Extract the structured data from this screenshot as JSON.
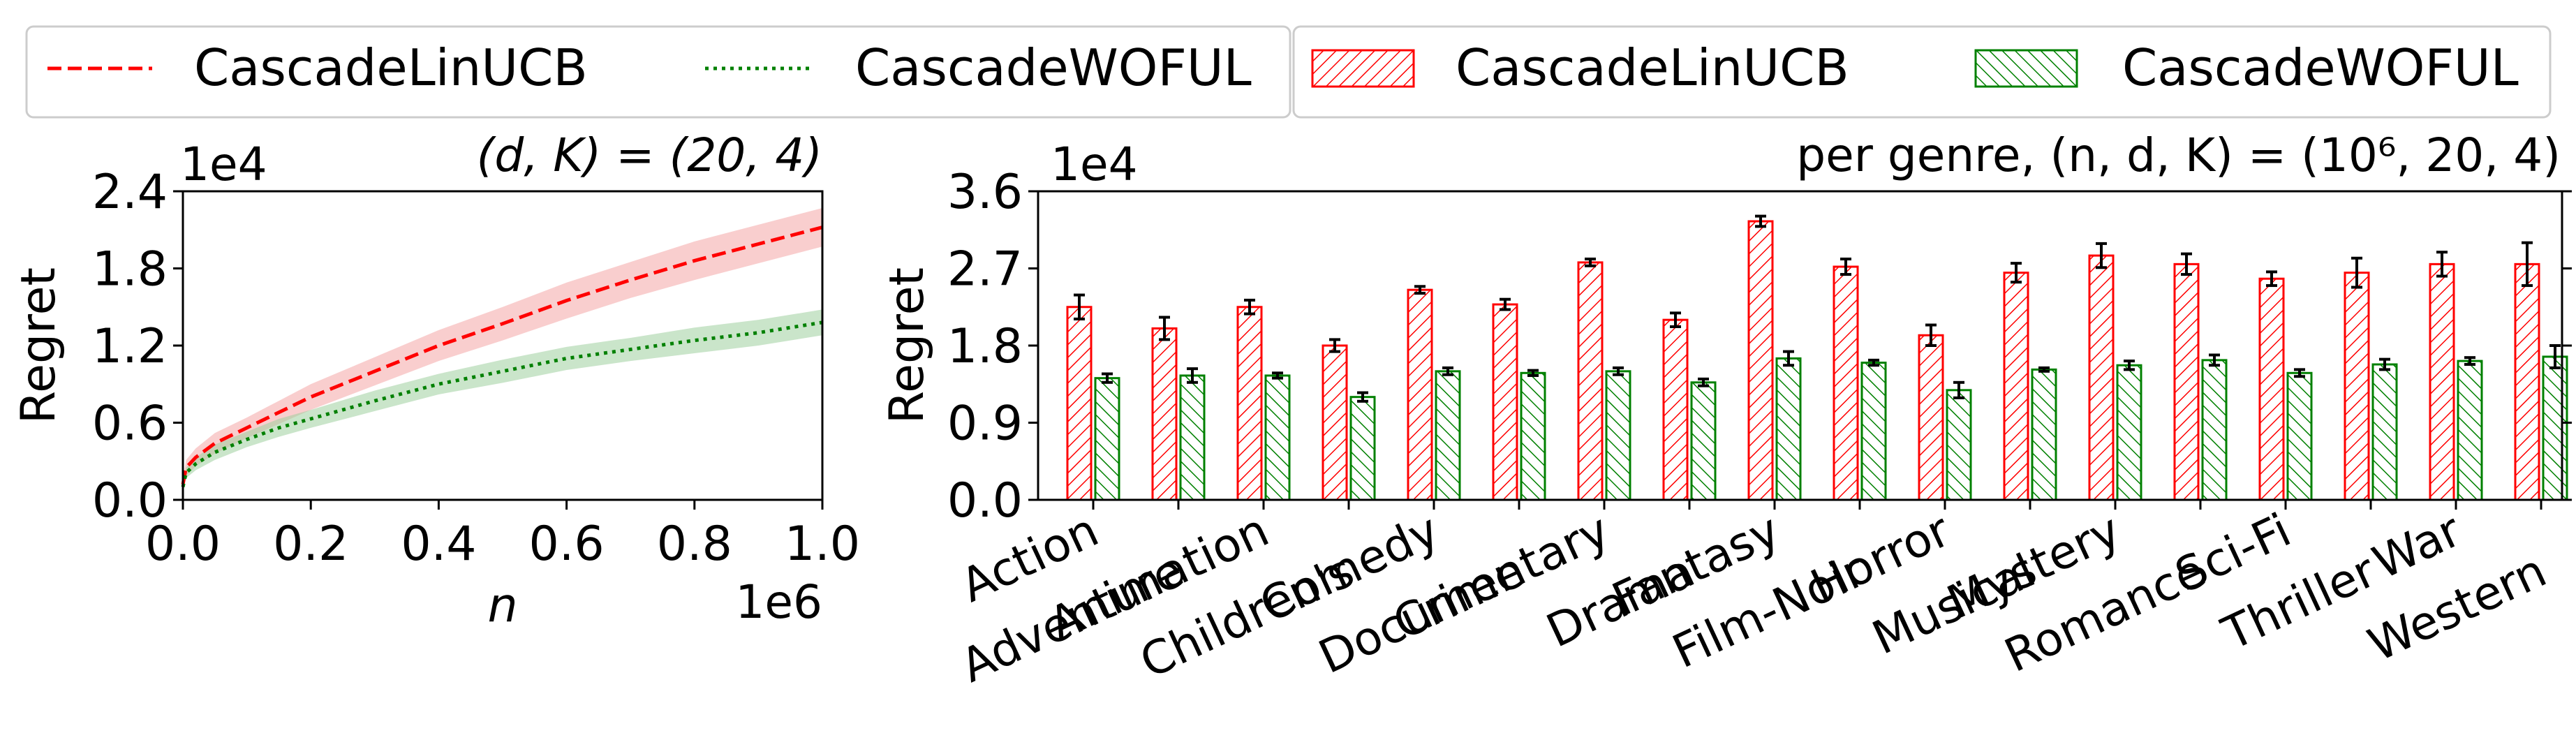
{
  "colors": {
    "linucb": "#ff0000",
    "woful": "#008000",
    "linucb_band": "#f4a6a6",
    "woful_band": "#9fd09f"
  },
  "legend_left": {
    "items": [
      "CascadeLinUCB",
      "CascadeWOFUL"
    ]
  },
  "legend_right": {
    "items": [
      "CascadeLinUCB",
      "CascadeWOFUL"
    ]
  },
  "chart_data": [
    {
      "type": "line",
      "title": "(d, K) = (20, 4)",
      "xlabel": "n",
      "ylabel": "Regret",
      "x_offset_text": "1e6",
      "y_offset_text": "1e4",
      "xlim": [
        0,
        1.0
      ],
      "ylim": [
        0,
        2.4
      ],
      "xticks": [
        "0.0",
        "0.2",
        "0.4",
        "0.6",
        "0.8",
        "1.0"
      ],
      "yticks": [
        "0.0",
        "0.6",
        "1.2",
        "1.8",
        "2.4"
      ],
      "x": [
        0,
        0.005,
        0.02,
        0.05,
        0.1,
        0.15,
        0.2,
        0.3,
        0.4,
        0.5,
        0.6,
        0.7,
        0.8,
        0.9,
        1.0
      ],
      "series": [
        {
          "name": "CascadeLinUCB",
          "style": "dashed",
          "values": [
            0.12,
            0.25,
            0.33,
            0.44,
            0.56,
            0.68,
            0.8,
            1.0,
            1.2,
            1.37,
            1.55,
            1.71,
            1.86,
            1.99,
            2.12
          ],
          "band": [
            0.04,
            0.06,
            0.07,
            0.08,
            0.08,
            0.09,
            0.1,
            0.11,
            0.12,
            0.13,
            0.14,
            0.14,
            0.15,
            0.15,
            0.15
          ]
        },
        {
          "name": "CascadeWOFUL",
          "style": "dotted",
          "values": [
            0.1,
            0.21,
            0.28,
            0.37,
            0.47,
            0.56,
            0.63,
            0.77,
            0.9,
            1.0,
            1.1,
            1.17,
            1.24,
            1.3,
            1.38
          ],
          "band": [
            0.03,
            0.04,
            0.05,
            0.06,
            0.06,
            0.07,
            0.07,
            0.08,
            0.08,
            0.09,
            0.09,
            0.09,
            0.1,
            0.1,
            0.1
          ]
        }
      ]
    },
    {
      "type": "bar",
      "title": "per genre, (n, d, K) = (10⁶, 20, 4)",
      "xlabel": "",
      "ylabel": "Regret",
      "y_offset_text": "1e4",
      "ylim": [
        0,
        3.6
      ],
      "yticks": [
        "0.0",
        "0.9",
        "1.8",
        "2.7",
        "3.6"
      ],
      "categories": [
        "Action",
        "Adventure",
        "Animation",
        "Children's",
        "Comedy",
        "Crime",
        "Documentary",
        "Drama",
        "Fantasy",
        "Film-Noir",
        "Horror",
        "Musical",
        "Mystery",
        "Romance",
        "Sci-Fi",
        "Thriller",
        "War",
        "Western"
      ],
      "series": [
        {
          "name": "CascadeLinUCB",
          "values": [
            2.25,
            2.0,
            2.25,
            1.8,
            2.45,
            2.28,
            2.77,
            2.1,
            3.25,
            2.72,
            1.92,
            2.65,
            2.85,
            2.75,
            2.58,
            2.65,
            2.75,
            2.75
          ],
          "errors": [
            0.14,
            0.13,
            0.08,
            0.07,
            0.04,
            0.06,
            0.04,
            0.08,
            0.06,
            0.09,
            0.12,
            0.11,
            0.14,
            0.12,
            0.08,
            0.17,
            0.14,
            0.25
          ]
        },
        {
          "name": "CascadeWOFUL",
          "values": [
            1.42,
            1.45,
            1.45,
            1.2,
            1.5,
            1.48,
            1.5,
            1.37,
            1.65,
            1.6,
            1.28,
            1.52,
            1.57,
            1.63,
            1.48,
            1.58,
            1.62,
            1.67
          ],
          "errors": [
            0.05,
            0.08,
            0.03,
            0.05,
            0.04,
            0.03,
            0.04,
            0.04,
            0.08,
            0.03,
            0.09,
            0.02,
            0.05,
            0.06,
            0.04,
            0.06,
            0.04,
            0.13
          ]
        }
      ]
    }
  ]
}
